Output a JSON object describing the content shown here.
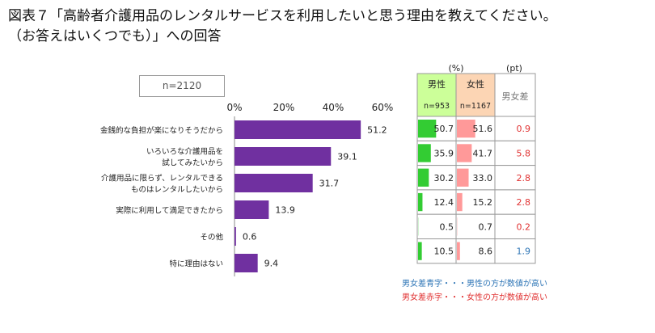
{
  "title": {
    "line1": "図表７「高齢者介護用品のレンタルサービスを利用したいと思う理由を教えてください。",
    "line2": "（お答えはいくつでも）」への回答"
  },
  "sample_label": "n=2120",
  "table": {
    "unit_pct": "(%)",
    "unit_pt": "(pt)",
    "male_header": "男性",
    "female_header": "女性",
    "diff_header": "男女差",
    "male_n": "n=953",
    "female_n": "n=1167"
  },
  "notes": {
    "blue": "男女差青字・・・男性の方が数値が高い",
    "red": "男女差赤字・・・女性の方が数値が高い"
  },
  "colors": {
    "bar": "#7030a0",
    "male_bar": "#33cc33",
    "female_bar": "#ff9999",
    "male_header_bg": "#ccff99",
    "female_header_bg": "#fcd5b4",
    "diff_red": "#e03030",
    "diff_blue": "#2e75b6"
  },
  "chart_data": {
    "type": "bar",
    "orientation": "horizontal",
    "xlim": [
      0,
      60
    ],
    "xticks": [
      "0%",
      "20%",
      "40%",
      "60%"
    ],
    "categories": [
      [
        "金銭的な負担が楽になりそうだから"
      ],
      [
        "いろいろな介護用品を",
        "試してみたいから"
      ],
      [
        "介護用品に限らず、レンタルできる",
        "ものはレンタルしたいから"
      ],
      [
        "実際に利用して満足できたから"
      ],
      [
        "その他"
      ],
      [
        "特に理由はない"
      ]
    ],
    "values": [
      51.2,
      39.1,
      31.7,
      13.9,
      0.6,
      9.4
    ],
    "male": [
      50.7,
      35.9,
      30.2,
      12.4,
      0.5,
      10.5
    ],
    "female": [
      51.6,
      41.7,
      33.0,
      15.2,
      0.7,
      8.6
    ],
    "diff": [
      {
        "value": "0.9",
        "color": "red"
      },
      {
        "value": "5.8",
        "color": "red"
      },
      {
        "value": "2.8",
        "color": "red"
      },
      {
        "value": "2.8",
        "color": "red"
      },
      {
        "value": "0.2",
        "color": "red"
      },
      {
        "value": "1.9",
        "color": "blue"
      }
    ]
  }
}
